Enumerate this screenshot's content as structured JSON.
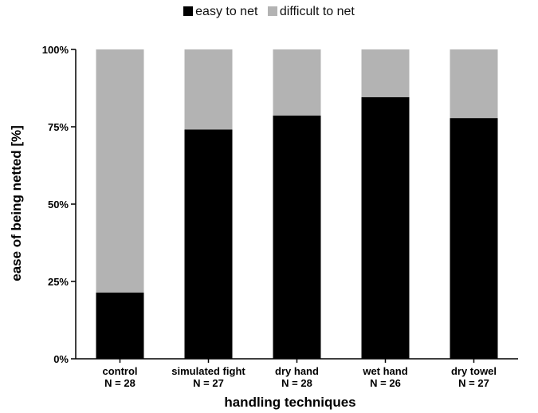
{
  "chart_data": {
    "type": "bar",
    "stacked": true,
    "categories": [
      "control",
      "simulated fight",
      "dry hand",
      "wet hand",
      "dry towel"
    ],
    "sample_sizes": [
      "N = 28",
      "N = 27",
      "N = 28",
      "N = 26",
      "N = 27"
    ],
    "series": [
      {
        "name": "easy to net",
        "color": "#000000",
        "values": [
          21.4,
          74.1,
          78.6,
          84.6,
          77.8
        ]
      },
      {
        "name": "difficult to net",
        "color": "#b3b3b3",
        "values": [
          78.6,
          25.9,
          21.4,
          15.4,
          22.2
        ]
      }
    ],
    "xlabel": "handling techniques",
    "ylabel": "ease of being netted [%]",
    "ylim": [
      0,
      100
    ],
    "yticks": [
      0,
      25,
      50,
      75,
      100
    ],
    "ytick_labels": [
      "0%",
      "25%",
      "50%",
      "75%",
      "100%"
    ],
    "grid": false,
    "legend_position": "top-center"
  }
}
